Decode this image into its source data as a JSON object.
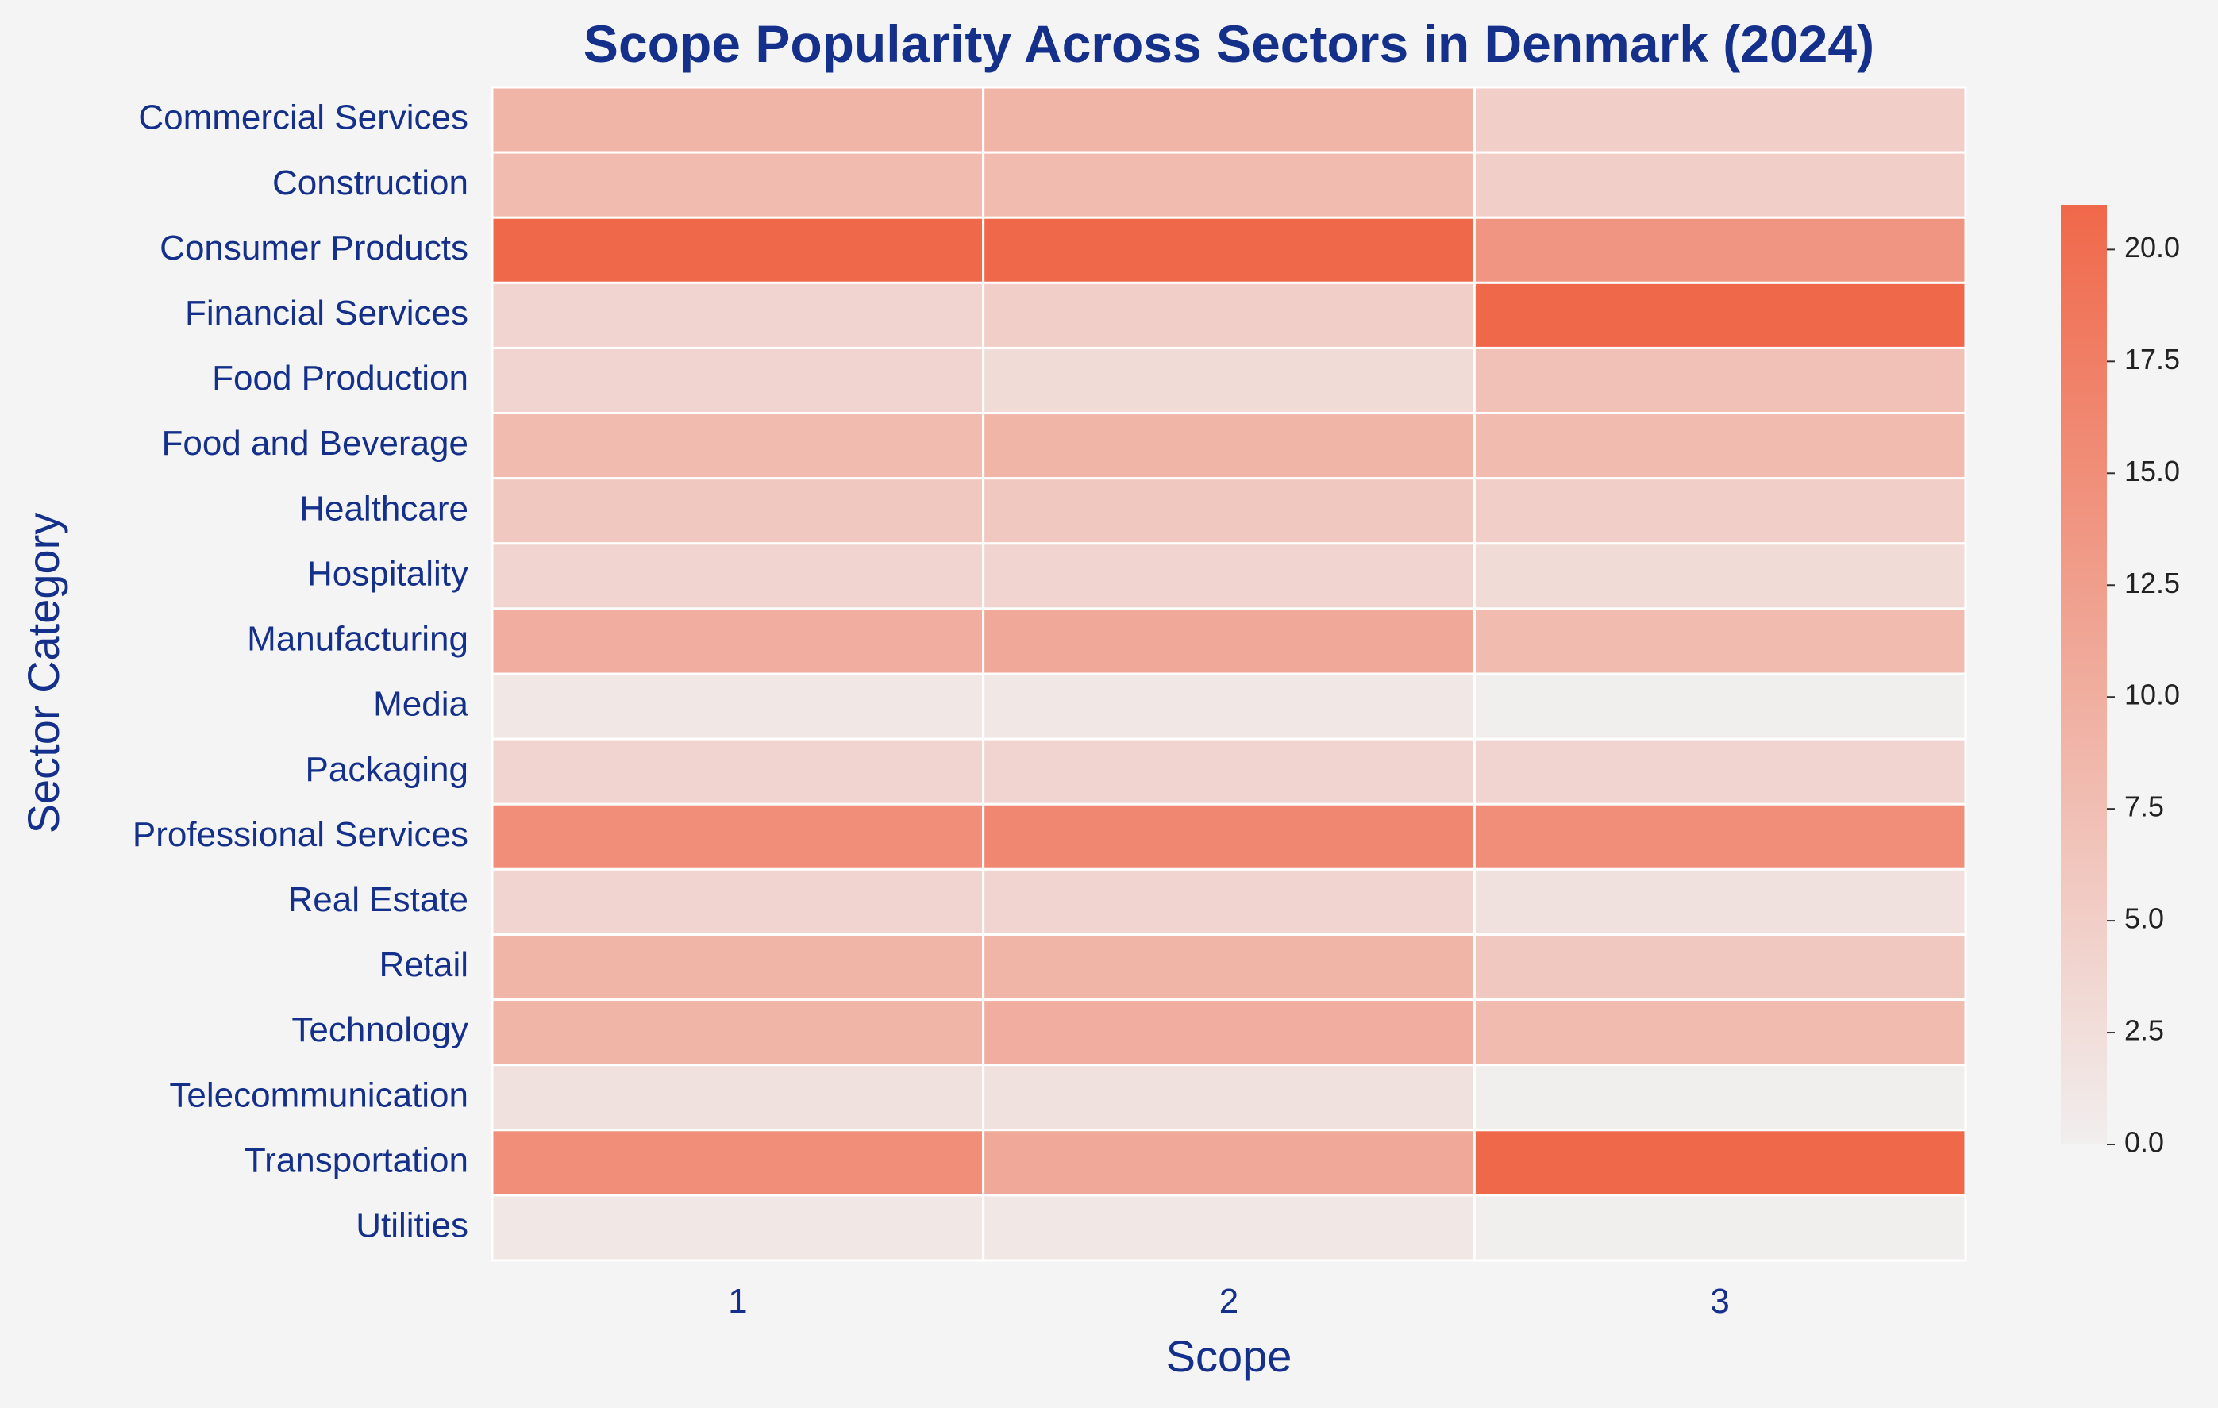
{
  "chart_data": {
    "type": "heatmap",
    "title": "Scope Popularity Across Sectors in Denmark (2024)",
    "xlabel": "Scope",
    "ylabel": "Sector Category",
    "x_categories": [
      "1",
      "2",
      "3"
    ],
    "y_categories": [
      "Commercial Services",
      "Construction",
      "Consumer Products",
      "Financial Services",
      "Food Production",
      "Food and Beverage",
      "Healthcare",
      "Hospitality",
      "Manufacturing",
      "Media",
      "Packaging",
      "Professional Services",
      "Real Estate",
      "Retail",
      "Technology",
      "Telecommunication",
      "Transportation",
      "Utilities"
    ],
    "values": [
      [
        9,
        9,
        5
      ],
      [
        8,
        8,
        5
      ],
      [
        21,
        21,
        14
      ],
      [
        4,
        5,
        21
      ],
      [
        4,
        3,
        7
      ],
      [
        8,
        9,
        8
      ],
      [
        6,
        6,
        5
      ],
      [
        4,
        4,
        3
      ],
      [
        10,
        11,
        8
      ],
      [
        1,
        1,
        0
      ],
      [
        4,
        4,
        4
      ],
      [
        15,
        16,
        15
      ],
      [
        4,
        4,
        2
      ],
      [
        9,
        9,
        6
      ],
      [
        9,
        10,
        8
      ],
      [
        2,
        2,
        0
      ],
      [
        15,
        11,
        21
      ],
      [
        1,
        1,
        0
      ]
    ],
    "colorbar": {
      "min": 0,
      "max": 21,
      "ticks": [
        "0.0",
        "2.5",
        "5.0",
        "7.5",
        "10.0",
        "12.5",
        "15.0",
        "17.5",
        "20.0"
      ],
      "color_low": "#f1eeee",
      "color_high": "#f0684a"
    },
    "grid": false
  }
}
